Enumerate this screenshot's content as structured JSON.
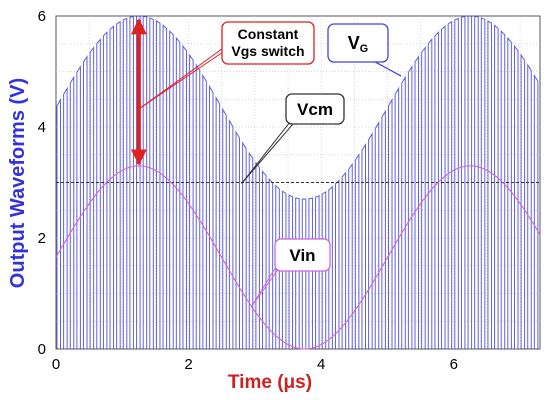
{
  "chart_data": {
    "type": "line",
    "title": "",
    "xlabel": "Time (μs)",
    "ylabel": "Output Waveforms (V)",
    "xlim": [
      0,
      7.3
    ],
    "ylim": [
      0,
      6
    ],
    "x_ticks": [
      "0",
      "2",
      "4",
      "6"
    ],
    "y_ticks": [
      "0",
      "2",
      "4",
      "6"
    ],
    "grid": true,
    "series": [
      {
        "name": "Vin",
        "color": "#cc66dd",
        "form": "sine",
        "period_us": 5.0,
        "offset_v": 1.65,
        "amplitude_v": 1.65,
        "peak_at_us": 1.25,
        "x": [
          0,
          0.5,
          1.0,
          1.25,
          1.5,
          2.0,
          2.5,
          3.0,
          3.5,
          3.75,
          4.0,
          4.5,
          5.0,
          5.5,
          6.0,
          6.25,
          6.5,
          7.0,
          7.3
        ],
        "y": [
          1.65,
          2.62,
          3.22,
          3.3,
          3.22,
          2.62,
          1.65,
          0.68,
          0.08,
          0.0,
          0.08,
          0.68,
          1.65,
          2.62,
          3.22,
          3.3,
          3.22,
          2.62,
          2.11
        ]
      },
      {
        "name": "VG",
        "color": "#4444dd",
        "form": "chopped",
        "switch_period_us": 0.1,
        "high_level": "Vin + 2.7 V",
        "low_v": 0.0,
        "envelope_x": [
          0,
          1.25,
          3.75,
          6.25,
          7.3
        ],
        "envelope_y": [
          4.35,
          6.0,
          2.7,
          6.0,
          4.81
        ]
      },
      {
        "name": "Vcm",
        "color": "#333333",
        "form": "constant",
        "x": [
          0,
          7.3
        ],
        "y": [
          3.0,
          3.0
        ]
      }
    ],
    "annotations": [
      {
        "text": "Constant\nVgs switch",
        "type": "double-arrow",
        "x": 1.25,
        "y_from": 3.3,
        "y_to": 6.0,
        "color": "#dd2222"
      },
      {
        "text": "VG",
        "points_to": "VG"
      },
      {
        "text": "Vcm",
        "points_to": "Vcm"
      },
      {
        "text": "Vin",
        "points_to": "Vin"
      }
    ]
  }
}
